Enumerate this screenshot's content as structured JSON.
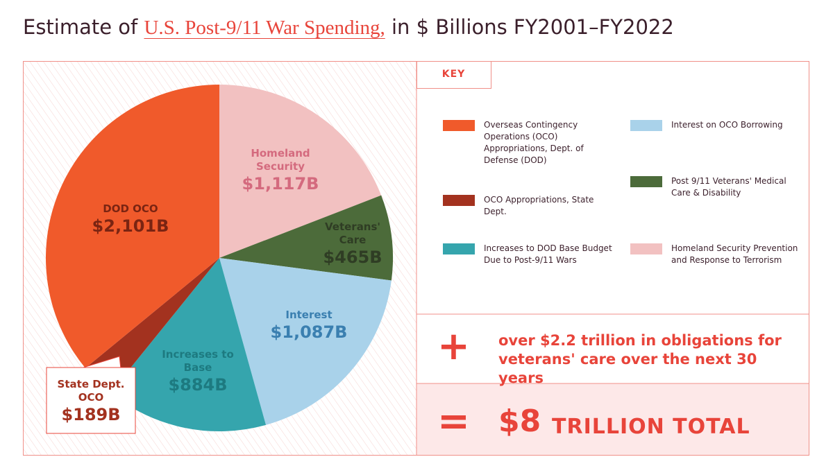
{
  "chart_data": {
    "type": "pie",
    "title": "Estimate of",
    "title_link": "U.S. Post-9/11 War Spending,",
    "title_suffix": "in $ Billions FY2001–FY2022",
    "categories": [
      "DOD OCO",
      "State Dept. OCO",
      "Increases to Base",
      "Interest",
      "Veterans' Care",
      "Homeland Security"
    ],
    "values": [
      2101,
      189,
      884,
      1087,
      465,
      1117
    ],
    "value_labels": [
      "$2,101B",
      "$189B",
      "$884B",
      "$1,087B",
      "$465B",
      "$1,117B"
    ],
    "colors": [
      "#f05a2b",
      "#a3321f",
      "#35a5ad",
      "#a9d2ea",
      "#4c6b3a",
      "#f2c1c1"
    ],
    "legend_title": "KEY",
    "legend": [
      "Overseas Contingency Operations (OCO) Appropriations, Dept. of Defense (DOD)",
      "OCO Appropriations, State Dept.",
      "Increases to DOD Base Budget Due to Post-9/11 Wars",
      "Interest on OCO Borrowing",
      "Post 9/11 Veterans' Medical Care & Disability",
      "Homeland Security Prevention and Response to Terrorism"
    ]
  },
  "summary": {
    "plus_sign": "+",
    "plus_text": "over $2.2 trillion in obligations for veterans' care over the next 30 years",
    "equals_sign": "=",
    "total_amount": "$8",
    "total_text": "TRILLION TOTAL"
  }
}
